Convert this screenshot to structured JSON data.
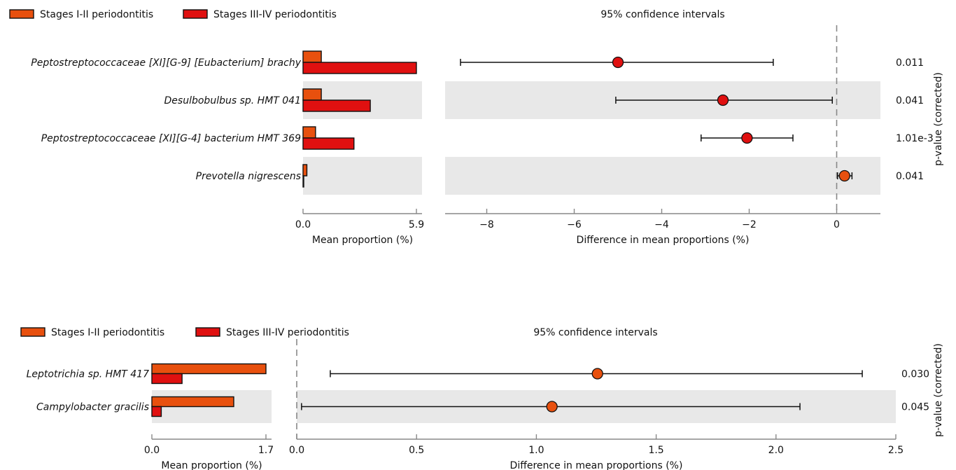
{
  "chart_data": [
    {
      "type": "bar",
      "panel": "top",
      "legend": {
        "placement": "top-left",
        "entries": [
          {
            "label": "Stages I-II periodontitis",
            "color": "#e8500e"
          },
          {
            "label": "Stages III-IV periodontitis",
            "color": "#e01010"
          }
        ]
      },
      "categories": [
        "Peptostreptococcaceae [XI][G-9] [Eubacterium] brachy",
        "Desulbobulbus sp. HMT 041",
        "Peptostreptococcaceae [XI][G-4] bacterium HMT 369",
        "Prevotella nigrescens"
      ],
      "series": [
        {
          "name": "Stages I-II periodontitis",
          "values": [
            0.95,
            0.95,
            0.65,
            0.2
          ]
        },
        {
          "name": "Stages III-IV periodontitis",
          "values": [
            5.9,
            3.5,
            2.65,
            0.03
          ]
        }
      ],
      "xlabel": "Mean proportion (%)",
      "xlim": [
        0,
        5.9
      ],
      "xticks": [
        "0.0",
        "5.9"
      ]
    },
    {
      "type": "scatter",
      "panel": "top",
      "title": "95% confidence intervals",
      "categories": [
        "Peptostreptococcaceae [XI][G-9] [Eubacterium] brachy",
        "Desulbobulbus sp. HMT 041",
        "Peptostreptococcaceae [XI][G-4] bacterium HMT 369",
        "Prevotella nigrescens"
      ],
      "estimates": [
        -5.0,
        -2.6,
        -2.05,
        0.18
      ],
      "ci_low": [
        -8.6,
        -5.05,
        -3.1,
        0.02
      ],
      "ci_high": [
        -1.45,
        -0.1,
        -1.0,
        0.35
      ],
      "point_colors": [
        "#e01010",
        "#e01010",
        "#e01010",
        "#e8500e"
      ],
      "xlabel": "Difference in mean proportions (%)",
      "xlim": [
        -9.0,
        1.0
      ],
      "xticks": [
        -8,
        -6,
        -4,
        -2,
        0
      ],
      "xtick_labels": [
        "−8",
        "−6",
        "−4",
        "−2",
        "0"
      ],
      "reference_line": 0,
      "p_values": [
        "0.011",
        "0.041",
        "1.01e-3",
        "0.041"
      ],
      "right_axis_label": "p-value (corrected)"
    },
    {
      "type": "bar",
      "panel": "bottom",
      "legend": {
        "placement": "top-left",
        "entries": [
          {
            "label": "Stages I-II periodontitis",
            "color": "#e8500e"
          },
          {
            "label": "Stages III-IV periodontitis",
            "color": "#e01010"
          }
        ]
      },
      "categories": [
        "Leptotrichia sp. HMT 417",
        "Campylobacter gracilis"
      ],
      "series": [
        {
          "name": "Stages I-II periodontitis",
          "values": [
            1.7,
            1.22
          ]
        },
        {
          "name": "Stages III-IV periodontitis",
          "values": [
            0.45,
            0.14
          ]
        }
      ],
      "xlabel": "Mean proportion (%)",
      "xlim": [
        0,
        1.7
      ],
      "xticks": [
        "0.0",
        "1.7"
      ]
    },
    {
      "type": "scatter",
      "panel": "bottom",
      "title": "95% confidence intervals",
      "categories": [
        "Leptotrichia sp. HMT 417",
        "Campylobacter gracilis"
      ],
      "estimates": [
        1.255,
        1.065
      ],
      "ci_low": [
        0.14,
        0.02
      ],
      "ci_high": [
        2.36,
        2.1
      ],
      "point_colors": [
        "#e8500e",
        "#e8500e"
      ],
      "xlabel": "Difference in mean proportions (%)",
      "xlim": [
        0.0,
        2.5
      ],
      "xticks": [
        0.0,
        0.5,
        1.0,
        1.5,
        2.0,
        2.5
      ],
      "xtick_labels": [
        "0.0",
        "0.5",
        "1.0",
        "1.5",
        "2.0",
        "2.5"
      ],
      "reference_line": 0,
      "p_values": [
        "0.030",
        "0.045"
      ],
      "right_axis_label": "p-value (corrected)"
    }
  ]
}
